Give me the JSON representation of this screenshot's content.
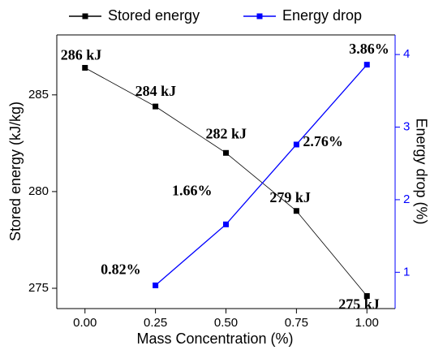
{
  "chart_data": {
    "type": "line",
    "x_label": "Mass Concentration (%)",
    "y_label": "Stored energy (kJ/kg)",
    "y2_label": "Energy drop (%)",
    "x": [
      0,
      0.25,
      0.5,
      0.75,
      1
    ],
    "series": [
      {
        "name": "Stored energy",
        "color": "#000000",
        "values": [
          286.4,
          284.4,
          282.0,
          279.0,
          274.6
        ],
        "value_labels": [
          "286 kJ",
          "284 kJ",
          "282 kJ",
          "279 kJ",
          "275 kJ"
        ]
      },
      {
        "name": "Energy drop",
        "color": "#0000ff",
        "axis": "y2",
        "values": [
          null,
          0.82,
          1.66,
          2.76,
          3.86
        ],
        "value_labels": [
          null,
          "0.82%",
          "1.66%",
          "2.76%",
          "3.86%"
        ]
      }
    ],
    "xlim": [
      -0.1,
      1.1
    ],
    "xticks": [
      {
        "value": 0,
        "label": "0.00"
      },
      {
        "value": 0.25,
        "label": "0.25"
      },
      {
        "value": 0.5,
        "label": "0.50"
      },
      {
        "value": 0.75,
        "label": "0.75"
      },
      {
        "value": 1,
        "label": "1.00"
      }
    ],
    "ylim": [
      273.95,
      288.1
    ],
    "yticks": [
      275,
      280,
      285
    ],
    "y2lim": [
      0.5,
      4.27
    ],
    "y2ticks": [
      1,
      2,
      3,
      4
    ],
    "legend": "top"
  }
}
